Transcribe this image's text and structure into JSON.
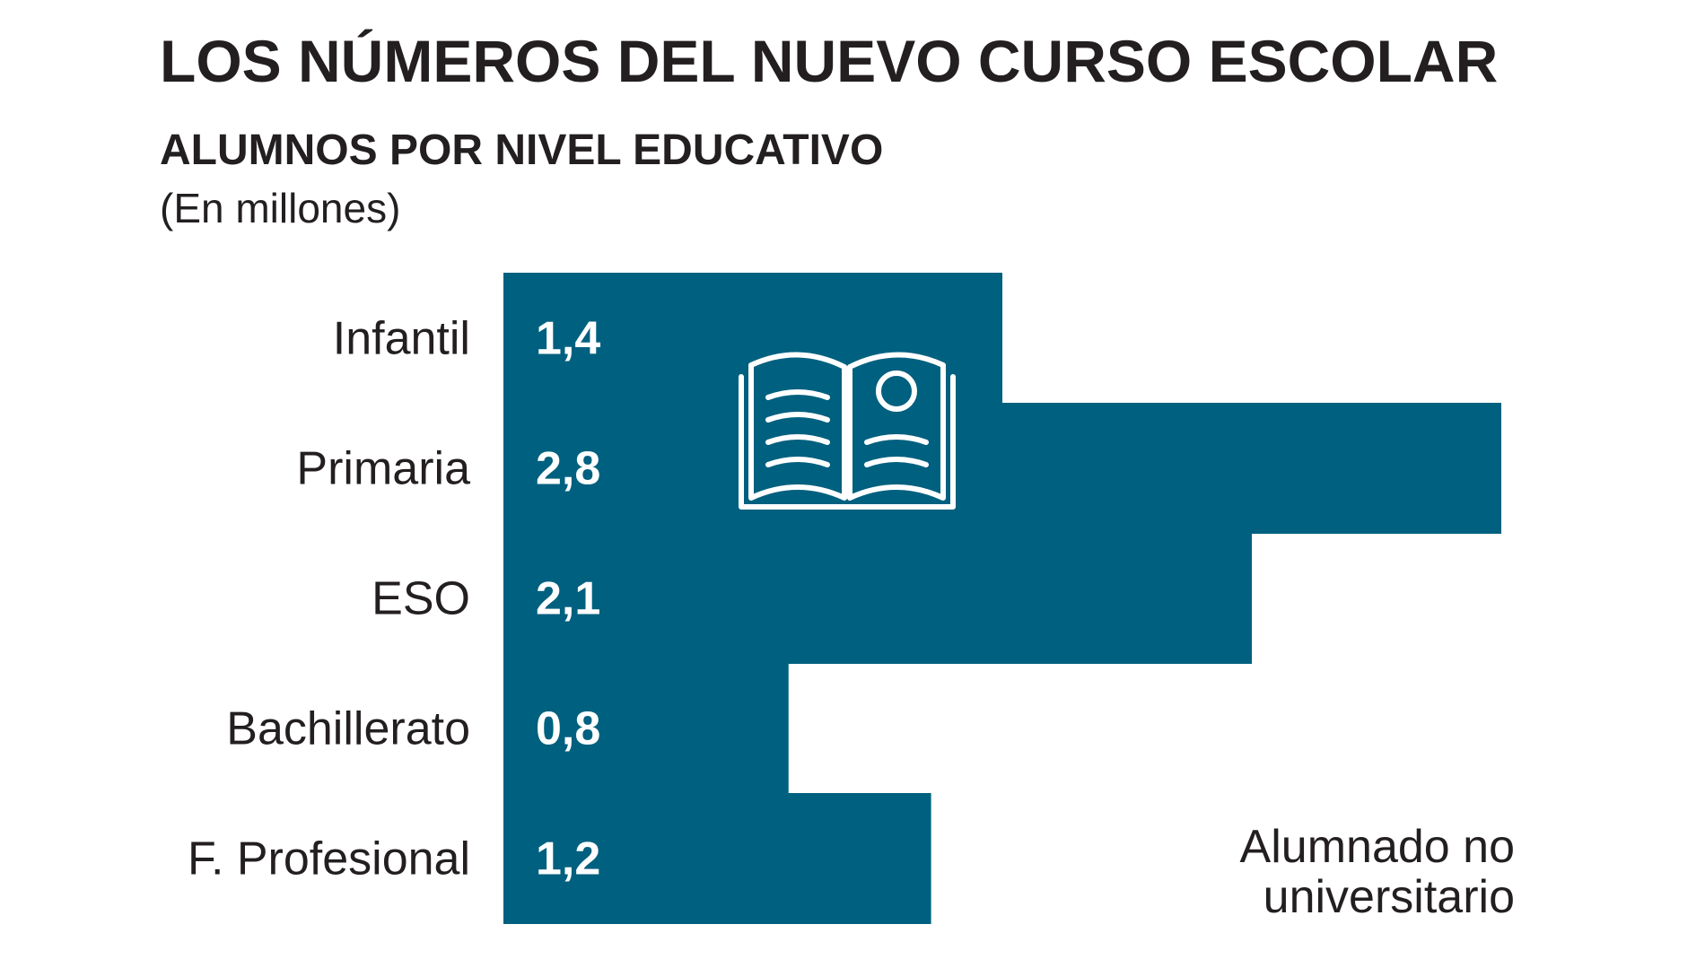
{
  "header": {
    "title": "LOS NÚMEROS DEL NUEVO CURSO ESCOLAR",
    "subtitle": "ALUMNOS POR NIVEL EDUCATIVO",
    "unit": "(En millones)"
  },
  "note": {
    "line1": "Alumnado no",
    "line2": "universitario"
  },
  "icon": "open-book-icon",
  "colors": {
    "bar": "#00607f",
    "text": "#231f20",
    "value_text": "#ffffff"
  },
  "chart_data": {
    "type": "bar",
    "orientation": "horizontal",
    "title": "ALUMNOS POR NIVEL EDUCATIVO",
    "subtitle": "(En millones)",
    "categories": [
      "Infantil",
      "Primaria",
      "ESO",
      "Bachillerato",
      "F. Profesional"
    ],
    "values": [
      1.4,
      2.8,
      2.1,
      0.8,
      1.2
    ],
    "value_labels": [
      "1,4",
      "2,8",
      "2,1",
      "0,8",
      "1,2"
    ],
    "xlim": [
      0,
      2.8
    ],
    "grid": false,
    "legend": "none"
  }
}
